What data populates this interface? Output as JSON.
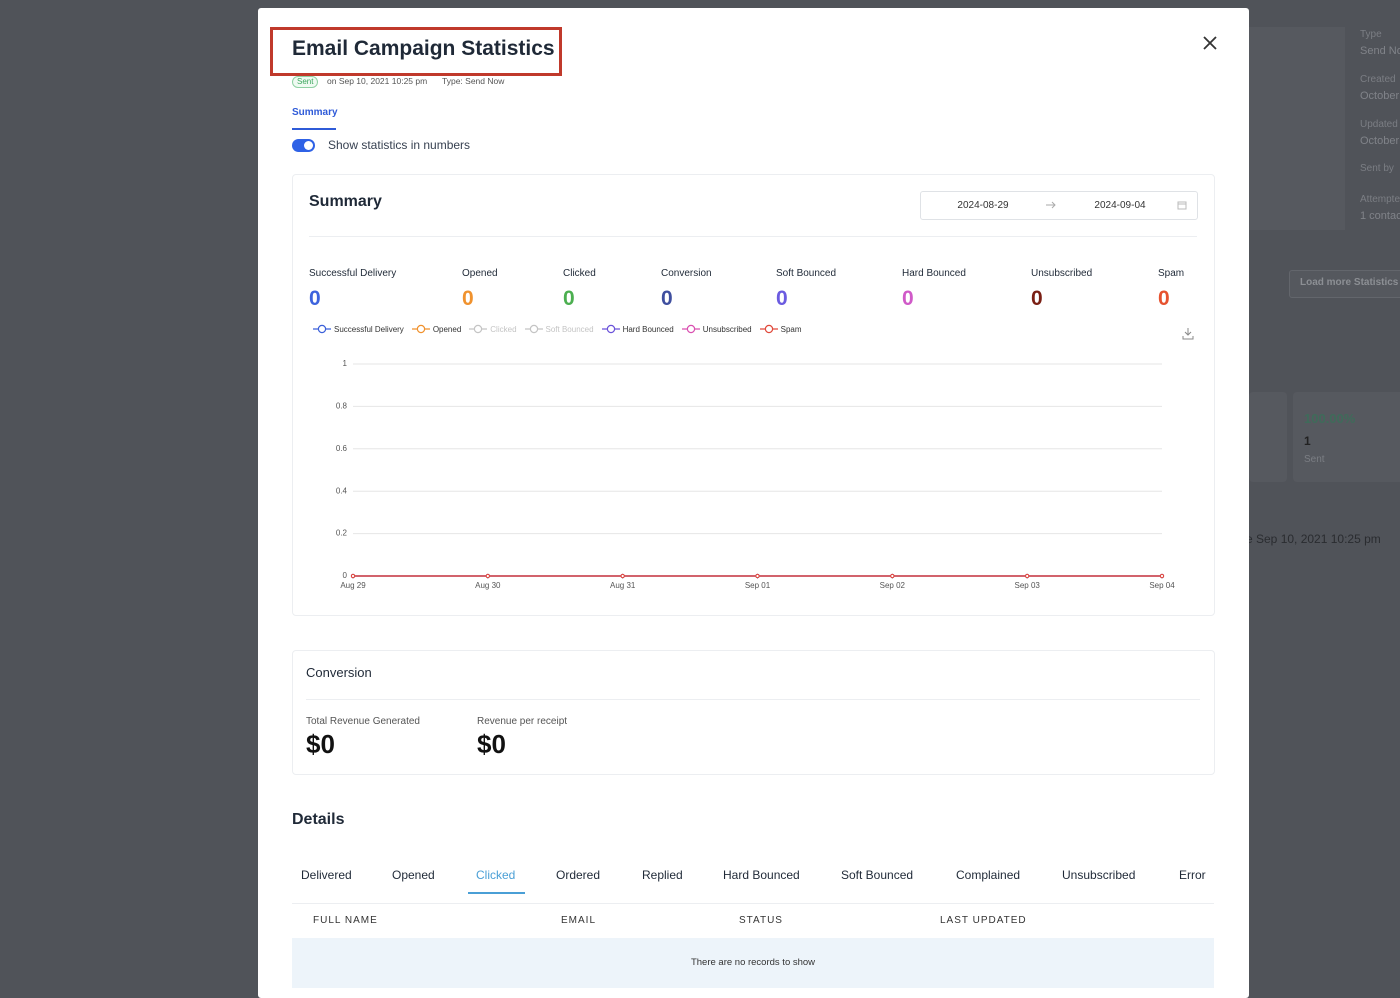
{
  "background": {
    "fields": [
      {
        "label": "Type",
        "value": "Send No"
      },
      {
        "label": "Created",
        "value": "October"
      },
      {
        "label": "Updated",
        "value": "October"
      },
      {
        "label": "Sent by",
        "value": null
      },
      {
        "label": "Attempte",
        "value": "1 contac"
      }
    ],
    "button": "Load more Statistics",
    "stat": {
      "percent": "100.00%",
      "count": "1",
      "label": "Sent"
    },
    "date_text": "e Sep 10, 2021 10:25 pm"
  },
  "modal": {
    "title": "Email Campaign Statistics",
    "status_badge": "Sent",
    "sent_on": "on Sep 10, 2021 10:25 pm",
    "type_text": "Type: Send Now",
    "tab": "Summary",
    "toggle_label": "Show statistics in numbers"
  },
  "summary": {
    "title": "Summary",
    "start_date": "2024-08-29",
    "end_date": "2024-09-04",
    "metrics": [
      {
        "label": "Successful Delivery",
        "value": 0,
        "color": "#3d63dd"
      },
      {
        "label": "Opened",
        "value": 0,
        "color": "#f0922e"
      },
      {
        "label": "Clicked",
        "value": 0,
        "color": "#4caf50"
      },
      {
        "label": "Conversion",
        "value": 0,
        "color": "#3f4f9f"
      },
      {
        "label": "Soft Bounced",
        "value": 0,
        "color": "#6b5be0"
      },
      {
        "label": "Hard Bounced",
        "value": 0,
        "color": "#d05ac8"
      },
      {
        "label": "Unsubscribed",
        "value": 0,
        "color": "#7a1f14"
      },
      {
        "label": "Spam",
        "value": 0,
        "color": "#e6522f"
      }
    ]
  },
  "chart_data": {
    "type": "line",
    "categories": [
      "Aug 29",
      "Aug 30",
      "Aug 31",
      "Sep 01",
      "Sep 02",
      "Sep 03",
      "Sep 04"
    ],
    "series": [
      {
        "name": "Successful Delivery",
        "color": "#3a5fd9",
        "values": [
          0,
          0,
          0,
          0,
          0,
          0,
          0
        ]
      },
      {
        "name": "Opened",
        "color": "#f0912c",
        "values": [
          0,
          0,
          0,
          0,
          0,
          0,
          0
        ]
      },
      {
        "name": "Clicked",
        "color": "#c4c4c4",
        "hidden": true,
        "values": [
          0,
          0,
          0,
          0,
          0,
          0,
          0
        ]
      },
      {
        "name": "Soft Bounced",
        "color": "#c4c4c4",
        "hidden": true,
        "values": [
          0,
          0,
          0,
          0,
          0,
          0,
          0
        ]
      },
      {
        "name": "Hard Bounced",
        "color": "#6a52d9",
        "values": [
          0,
          0,
          0,
          0,
          0,
          0,
          0
        ]
      },
      {
        "name": "Unsubscribed",
        "color": "#d94fb0",
        "values": [
          0,
          0,
          0,
          0,
          0,
          0,
          0
        ]
      },
      {
        "name": "Spam",
        "color": "#e0483a",
        "values": [
          0,
          0,
          0,
          0,
          0,
          0,
          0
        ]
      }
    ],
    "ylim": [
      0,
      1
    ],
    "yticks": [
      0,
      0.2,
      0.4,
      0.6,
      0.8,
      1
    ],
    "grid": true
  },
  "conversion": {
    "title": "Conversion",
    "items": [
      {
        "label": "Total Revenue Generated",
        "value": "$0"
      },
      {
        "label": "Revenue per receipt",
        "value": "$0"
      }
    ]
  },
  "details": {
    "title": "Details",
    "tabs": [
      {
        "label": "Delivered"
      },
      {
        "label": "Opened"
      },
      {
        "label": "Clicked",
        "active": true
      },
      {
        "label": "Ordered"
      },
      {
        "label": "Replied"
      },
      {
        "label": "Hard Bounced"
      },
      {
        "label": "Soft Bounced"
      },
      {
        "label": "Complained"
      },
      {
        "label": "Unsubscribed"
      },
      {
        "label": "Error"
      }
    ],
    "columns": [
      "FULL NAME",
      "EMAIL",
      "STATUS",
      "LAST UPDATED"
    ],
    "empty_text": "There are no records to show"
  }
}
